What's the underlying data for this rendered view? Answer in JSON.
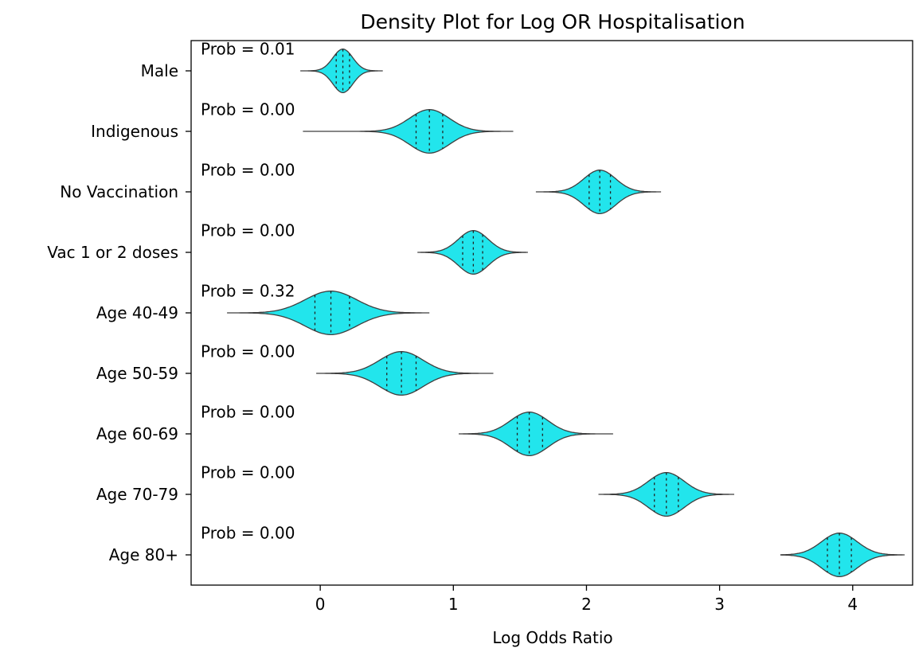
{
  "chart_data": {
    "type": "violin",
    "title": "Density Plot for Log OR Hospitalisation",
    "xlabel": "Log Odds Ratio",
    "ylabel": "",
    "xlim": [
      -0.97,
      4.45
    ],
    "xticks": [
      0,
      1,
      2,
      3,
      4
    ],
    "grid": false,
    "orientation": "horizontal",
    "fill_color": "#22e5ec",
    "edge_color": "#3f3f3f",
    "categories": [
      "Male",
      "Indigenous",
      "No Vaccination",
      "Vac 1 or 2 doses",
      "Age 40-49",
      "Age 50-59",
      "Age 60-69",
      "Age 70-79",
      "Age 80+"
    ],
    "annotations": [
      "Prob = 0.01",
      "Prob = 0.00",
      "Prob = 0.00",
      "Prob = 0.00",
      "Prob = 0.32",
      "Prob = 0.00",
      "Prob = 0.00",
      "Prob = 0.00",
      "Prob = 0.00"
    ],
    "distributions": [
      {
        "category": "Male",
        "min": -0.15,
        "max": 0.47,
        "q1": 0.12,
        "median": 0.17,
        "q3": 0.22,
        "mode": 0.17
      },
      {
        "category": "Indigenous",
        "min": -0.13,
        "max": 1.45,
        "q1": 0.72,
        "median": 0.82,
        "q3": 0.92,
        "mode": 0.82
      },
      {
        "category": "No Vaccination",
        "min": 1.62,
        "max": 2.56,
        "q1": 2.02,
        "median": 2.1,
        "q3": 2.18,
        "mode": 2.1
      },
      {
        "category": "Vac 1 or 2 doses",
        "min": 0.73,
        "max": 1.56,
        "q1": 1.07,
        "median": 1.15,
        "q3": 1.22,
        "mode": 1.15
      },
      {
        "category": "Age 40-49",
        "min": -0.7,
        "max": 0.82,
        "q1": -0.04,
        "median": 0.08,
        "q3": 0.22,
        "mode": 0.08
      },
      {
        "category": "Age 50-59",
        "min": -0.03,
        "max": 1.3,
        "q1": 0.5,
        "median": 0.61,
        "q3": 0.72,
        "mode": 0.61
      },
      {
        "category": "Age 60-69",
        "min": 1.04,
        "max": 2.2,
        "q1": 1.48,
        "median": 1.57,
        "q3": 1.67,
        "mode": 1.57
      },
      {
        "category": "Age 70-79",
        "min": 2.09,
        "max": 3.11,
        "q1": 2.51,
        "median": 2.6,
        "q3": 2.69,
        "mode": 2.6
      },
      {
        "category": "Age 80+",
        "min": 3.46,
        "max": 4.39,
        "q1": 3.81,
        "median": 3.9,
        "q3": 3.99,
        "mode": 3.9
      }
    ]
  }
}
